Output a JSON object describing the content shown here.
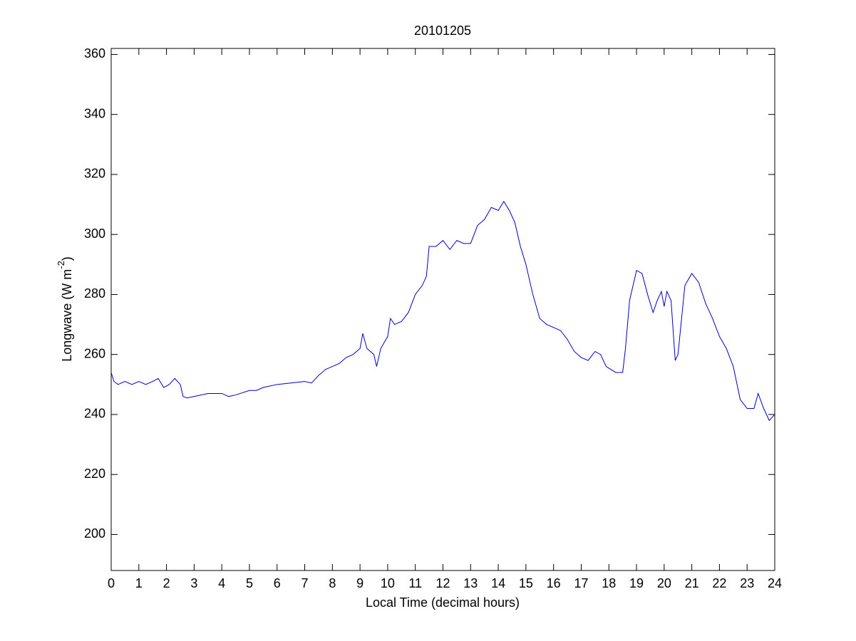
{
  "chart_data": {
    "type": "line",
    "title": "20101205",
    "xlabel": "Local Time (decimal hours)",
    "ylabel": [
      "Longwave (W m",
      "-2",
      ")"
    ],
    "xlim": [
      0,
      24
    ],
    "xticks": [
      0,
      1,
      2,
      3,
      4,
      5,
      6,
      7,
      8,
      9,
      10,
      11,
      12,
      13,
      14,
      15,
      16,
      17,
      18,
      19,
      20,
      21,
      22,
      23,
      24
    ],
    "ylim": [
      188,
      362
    ],
    "yticks": [
      200,
      220,
      240,
      260,
      280,
      300,
      320,
      340,
      360
    ],
    "grid": false,
    "series": [
      {
        "color": "#0000cc",
        "x": [
          0,
          0.1,
          0.25,
          0.5,
          0.75,
          1,
          1.25,
          1.5,
          1.7,
          1.9,
          2.1,
          2.3,
          2.5,
          2.6,
          2.75,
          3,
          3.5,
          4,
          4.25,
          4.5,
          5,
          5.25,
          5.5,
          5.75,
          6,
          6.5,
          7,
          7.25,
          7.5,
          7.75,
          8,
          8.25,
          8.5,
          8.75,
          9,
          9.1,
          9.25,
          9.5,
          9.6,
          9.75,
          10,
          10.1,
          10.25,
          10.5,
          10.75,
          11,
          11.25,
          11.4,
          11.5,
          11.75,
          12,
          12.25,
          12.5,
          12.75,
          13,
          13.25,
          13.5,
          13.75,
          14,
          14.2,
          14.4,
          14.6,
          14.8,
          15,
          15.25,
          15.5,
          15.75,
          16,
          16.25,
          16.5,
          16.75,
          17,
          17.25,
          17.5,
          17.7,
          17.9,
          18.25,
          18.5,
          18.6,
          18.75,
          19,
          19.2,
          19.4,
          19.6,
          19.75,
          19.9,
          20,
          20.1,
          20.25,
          20.4,
          20.5,
          20.75,
          21,
          21.25,
          21.5,
          21.75,
          22,
          22.25,
          22.5,
          22.75,
          23,
          23.25,
          23.4,
          23.6,
          23.8,
          24
        ],
        "values": [
          254,
          251,
          250,
          251,
          250,
          251,
          250,
          251,
          252,
          249,
          250,
          252,
          250,
          246,
          245.5,
          246,
          247,
          247,
          246,
          246.5,
          248,
          248,
          249,
          249.5,
          250,
          250.5,
          251,
          250.5,
          253,
          255,
          256,
          257,
          259,
          260,
          262,
          267,
          262,
          260,
          256,
          262,
          266,
          272,
          270,
          271,
          274,
          280,
          283,
          286,
          296,
          296,
          298,
          295,
          298,
          297,
          297,
          303,
          305,
          309,
          308,
          311,
          308,
          304,
          296,
          290,
          280,
          272,
          270,
          269,
          268,
          265,
          261,
          259,
          258,
          261,
          260,
          256,
          254,
          254,
          262,
          278,
          288,
          287,
          280,
          274,
          278,
          281,
          276,
          281,
          278,
          258,
          260,
          283,
          287,
          284,
          277,
          272,
          266,
          262,
          256,
          245,
          242,
          242,
          247,
          242,
          238,
          240
        ]
      }
    ]
  }
}
